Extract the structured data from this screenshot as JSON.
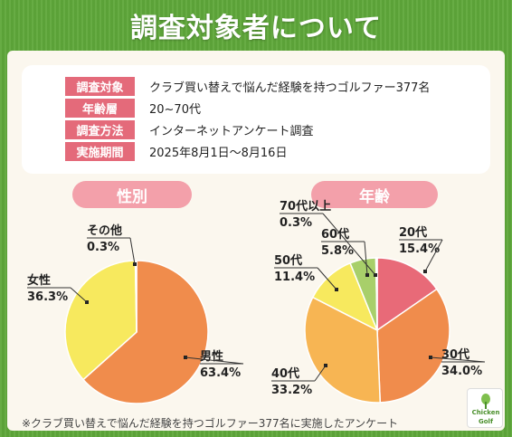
{
  "title": "調査対象者について",
  "survey": [
    {
      "label": "調査対象",
      "value": "クラブ買い替えで悩んだ経験を持つゴルファー377名"
    },
    {
      "label": "年齢層",
      "value": "20~70代"
    },
    {
      "label": "調査方法",
      "value": "インターネットアンケート調査"
    },
    {
      "label": "実施期間",
      "value": "2025年8月1日〜8月16日"
    }
  ],
  "footnote": "※クラブ買い替えで悩んだ経験を持つゴルファー377名に実施したアンケート",
  "logo": {
    "line1": "Chicken",
    "line2": "Golf",
    "mark": "Chicken Golf"
  },
  "colors": {
    "pink": "#e46a7a",
    "pill": "#f3a0aa",
    "orange": "#f08c4c",
    "yellow": "#f7e95e",
    "red": "#e86a78",
    "light_orange": "#f7b553",
    "green": "#a8cf6a",
    "bg_green": "#5fa83a"
  },
  "chart_data": [
    {
      "type": "pie",
      "title": "性別",
      "slices": [
        {
          "label": "男性",
          "value": 63.4,
          "value_label": "63.4%",
          "color": "#f08c4c"
        },
        {
          "label": "女性",
          "value": 36.3,
          "value_label": "36.3%",
          "color": "#f7e95e"
        },
        {
          "label": "その他",
          "value": 0.3,
          "value_label": "0.3%",
          "color": "#f7e95e"
        }
      ]
    },
    {
      "type": "pie",
      "title": "年齢",
      "slices": [
        {
          "label": "20代",
          "value": 15.4,
          "value_label": "15.4%",
          "color": "#e86a78"
        },
        {
          "label": "30代",
          "value": 34.0,
          "value_label": "34.0%",
          "color": "#f08c4c"
        },
        {
          "label": "40代",
          "value": 33.2,
          "value_label": "33.2%",
          "color": "#f7b553"
        },
        {
          "label": "50代",
          "value": 11.4,
          "value_label": "11.4%",
          "color": "#f7e95e"
        },
        {
          "label": "60代",
          "value": 5.8,
          "value_label": "5.8%",
          "color": "#a8cf6a"
        },
        {
          "label": "70代以上",
          "value": 0.3,
          "value_label": "0.3%",
          "color": "#a8cf6a"
        }
      ]
    }
  ]
}
